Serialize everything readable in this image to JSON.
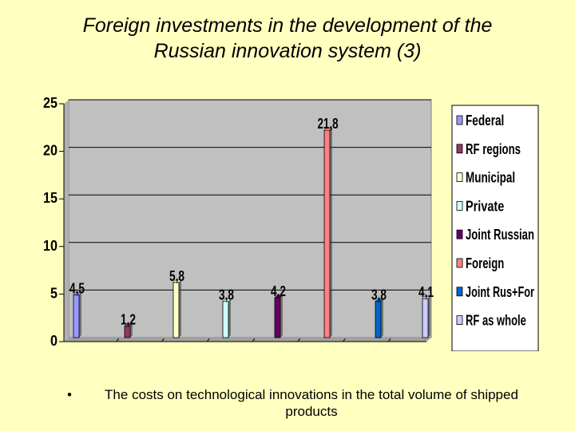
{
  "slide": {
    "title_line1": "Foreign investments in the development of the",
    "title_line2": "Russian innovation system (3)",
    "bullet": "•",
    "caption": "The costs on technological innovations in the total volume of shipped products"
  },
  "chart_data": {
    "type": "bar",
    "title": "",
    "xlabel": "",
    "ylabel": "",
    "ylim": [
      0,
      25
    ],
    "yticks": [
      0,
      5,
      10,
      15,
      20,
      25
    ],
    "grid": true,
    "legend_position": "right",
    "series": [
      {
        "name": "Federal",
        "value": 4.5,
        "label": "4,5",
        "color": "#9999FF"
      },
      {
        "name": "RF regions",
        "value": 1.2,
        "label": "1,2",
        "color": "#993366"
      },
      {
        "name": "Municipal",
        "value": 5.8,
        "label": "5,8",
        "color": "#FFFFCC"
      },
      {
        "name": "Private",
        "value": 3.8,
        "label": "3,8",
        "color": "#CCFFFF"
      },
      {
        "name": "Joint Russian",
        "value": 4.2,
        "label": "4,2",
        "color": "#660066"
      },
      {
        "name": "Foreign",
        "value": 21.8,
        "label": "21,8",
        "color": "#FF8080"
      },
      {
        "name": "Joint Rus+For",
        "value": 3.8,
        "label": "3,8",
        "color": "#0066CC"
      },
      {
        "name": "RF as whole",
        "value": 4.1,
        "label": "4,1",
        "color": "#CCCCFF"
      }
    ]
  }
}
